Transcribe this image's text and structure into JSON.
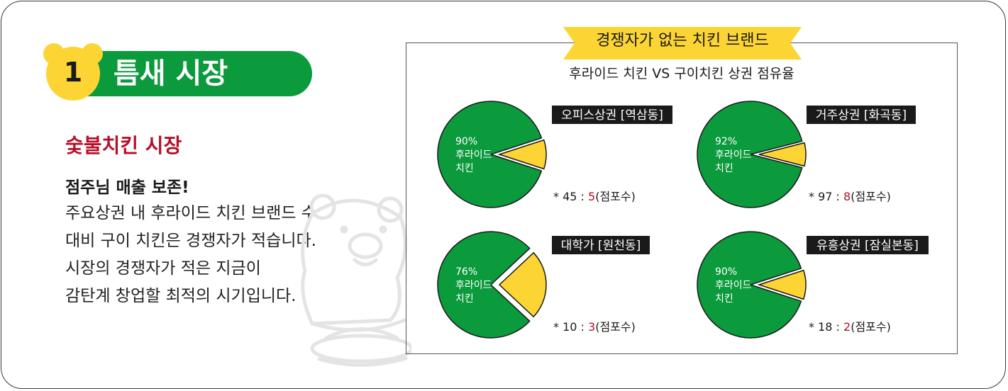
{
  "section": {
    "number": "1",
    "title": "틈새 시장"
  },
  "content": {
    "subtitle": "숯불치킨 시장",
    "bold_line": "점주님 매출 보존!",
    "lines": [
      "주요상권 내 후라이드 치킨 브랜드 수",
      "대비 구이 치킨은 경쟁자가 적습니다.",
      "시장의 경쟁자가 적은 지금이",
      "감탄계 창업할 최적의 시기입니다."
    ]
  },
  "colors": {
    "green": "#0b9a3c",
    "yellow": "#fcd535",
    "red": "#b5102a",
    "label_bg": "#1a1a1a"
  },
  "chart_data": {
    "type": "pie",
    "title": "경쟁자가 없는 치킨 브랜드",
    "subtitle": "후라이드 치킨 VS 구이치킨 상권 점유율",
    "charts": [
      {
        "label": "오피스상권 [역삼동]",
        "slices": [
          {
            "name": "후라이드 치킨",
            "text": [
              "90%",
              "후라이드",
              "치킨"
            ],
            "value": 90,
            "color": "#0b9a3c"
          },
          {
            "name": "",
            "value": 10,
            "color": "#fcd535"
          }
        ],
        "note": {
          "prefix": "* 45 : ",
          "value": "5",
          "suffix": "(점포수)"
        }
      },
      {
        "label": "거주상권 [화곡동]",
        "slices": [
          {
            "name": "후라이드 치킨",
            "text": [
              "92%",
              "후라이드",
              "치킨"
            ],
            "value": 92,
            "color": "#0b9a3c"
          },
          {
            "name": "",
            "value": 8,
            "color": "#fcd535"
          }
        ],
        "note": {
          "prefix": "* 97 : ",
          "value": "8",
          "suffix": "(점포수)"
        }
      },
      {
        "label": "대학가 [원천동]",
        "slices": [
          {
            "name": "후라이드 치킨",
            "text": [
              "76%",
              "후라이드",
              "치킨"
            ],
            "value": 76,
            "color": "#0b9a3c"
          },
          {
            "name": "",
            "value": 24,
            "color": "#fcd535"
          }
        ],
        "note": {
          "prefix": "* 10 : ",
          "value": "3",
          "suffix": "(점포수)"
        }
      },
      {
        "label": "유흥상권 [잠실본동]",
        "slices": [
          {
            "name": "후라이드 치킨",
            "text": [
              "90%",
              "후라이드",
              "치킨"
            ],
            "value": 90,
            "color": "#0b9a3c"
          },
          {
            "name": "",
            "value": 10,
            "color": "#fcd535"
          }
        ],
        "note": {
          "prefix": "* 18 : ",
          "value": "2",
          "suffix": "(점포수)"
        }
      }
    ]
  }
}
